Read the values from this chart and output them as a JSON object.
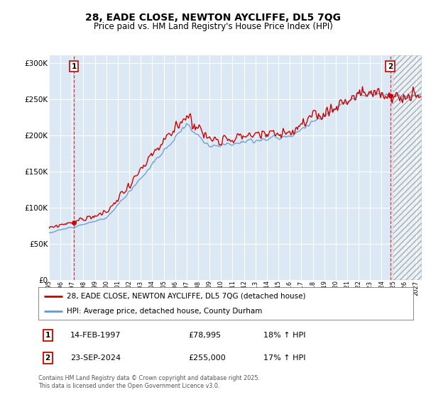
{
  "title_line1": "28, EADE CLOSE, NEWTON AYCLIFFE, DL5 7QG",
  "title_line2": "Price paid vs. HM Land Registry's House Price Index (HPI)",
  "bg_color": "#dce9f5",
  "hatch_color": "#c8d8e8",
  "line1_color": "#cc0000",
  "line2_color": "#6699cc",
  "sale1_x": 1997.1667,
  "sale1_price": 78995,
  "sale2_x": 2024.75,
  "sale2_price": 255000,
  "ylim_min": 0,
  "ylim_max": 310000,
  "xlim_min": 1995,
  "xlim_max": 2027.5,
  "future_start": 2025.0,
  "legend_label1": "28, EADE CLOSE, NEWTON AYCLIFFE, DL5 7QG (detached house)",
  "legend_label2": "HPI: Average price, detached house, County Durham",
  "annot1_label": "1",
  "annot1_date": "14-FEB-1997",
  "annot1_price": "£78,995",
  "annot1_hpi": "18% ↑ HPI",
  "annot2_label": "2",
  "annot2_date": "23-SEP-2024",
  "annot2_price": "£255,000",
  "annot2_hpi": "17% ↑ HPI",
  "footer": "Contains HM Land Registry data © Crown copyright and database right 2025.\nThis data is licensed under the Open Government Licence v3.0."
}
